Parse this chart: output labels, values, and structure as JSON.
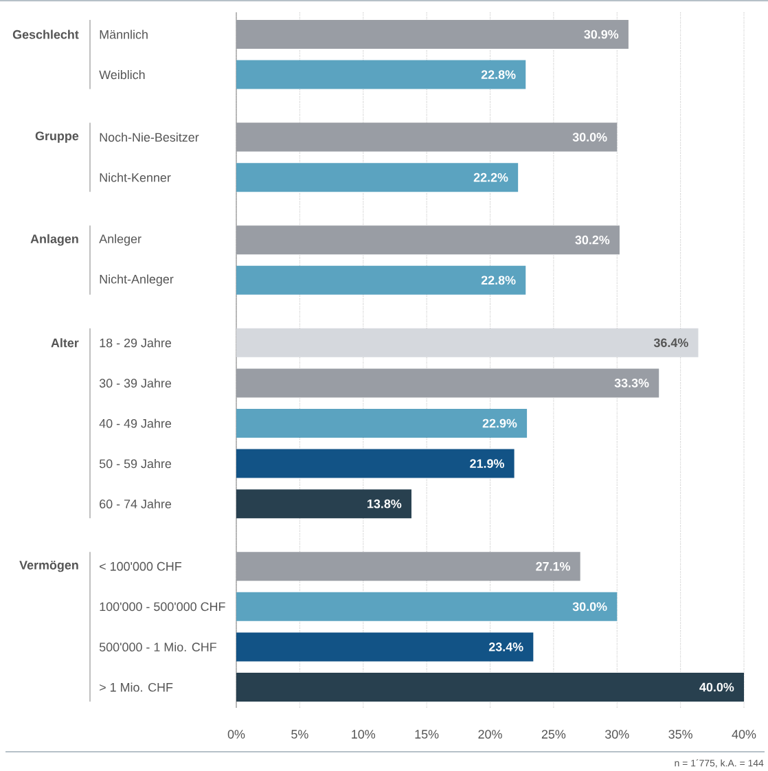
{
  "chart_data": {
    "type": "bar",
    "orientation": "horizontal",
    "categories": [
      "Männlich",
      "Weiblich",
      null,
      "Noch-Nie-Besitzer",
      "Nicht-Kenner",
      null,
      "Anleger",
      "Nicht-Anleger",
      null,
      "18 - 29 Jahre",
      "30 - 39 Jahre",
      "40 - 49 Jahre",
      "50 - 59 Jahre",
      "60 - 74 Jahre",
      null,
      "< 100'000 CHF",
      "100'000 - 500'000 CHF",
      "500'000 - 1 Mio. CHF",
      "> 1 Mio. CHF"
    ],
    "values": [
      30.9,
      22.8,
      null,
      30.0,
      22.2,
      null,
      30.2,
      22.8,
      null,
      36.4,
      33.3,
      22.9,
      21.9,
      13.8,
      null,
      27.1,
      30.0,
      23.4,
      40.0
    ],
    "value_labels": [
      "30.9%",
      "22.8%",
      null,
      "30.0%",
      "22.2%",
      null,
      "30.2%",
      "22.8%",
      null,
      "36.4%",
      "33.3%",
      "22.9%",
      "21.9%",
      "13.8%",
      null,
      "27.1%",
      "30.0%",
      "23.4%",
      "40.0%"
    ],
    "colors": [
      "#999da4",
      "#5ba3c0",
      null,
      "#999da4",
      "#5ba3c0",
      null,
      "#999da4",
      "#5ba3c0",
      null,
      "#d5d8dd",
      "#999da4",
      "#5ba3c0",
      "#125386",
      "#28404f",
      null,
      "#999da4",
      "#5ba3c0",
      "#125386",
      "#28404f"
    ],
    "xlim": [
      0,
      40
    ],
    "xticks": [
      {
        "value": 0,
        "label": "0%"
      },
      {
        "value": 5,
        "label": "5%"
      },
      {
        "value": 10,
        "label": "10%"
      },
      {
        "value": 15,
        "label": "15%"
      },
      {
        "value": 20,
        "label": "20%"
      },
      {
        "value": 25,
        "label": "25%"
      },
      {
        "value": 30,
        "label": "30%"
      },
      {
        "value": 35,
        "label": "35%"
      },
      {
        "value": 40,
        "label": "40%"
      }
    ],
    "grid": "x",
    "annotations": [
      "Geschlecht",
      "Gruppe",
      "Anlagen",
      "Alter",
      "Vermögen",
      "n = 1´775, k.A. = 144"
    ]
  }
}
